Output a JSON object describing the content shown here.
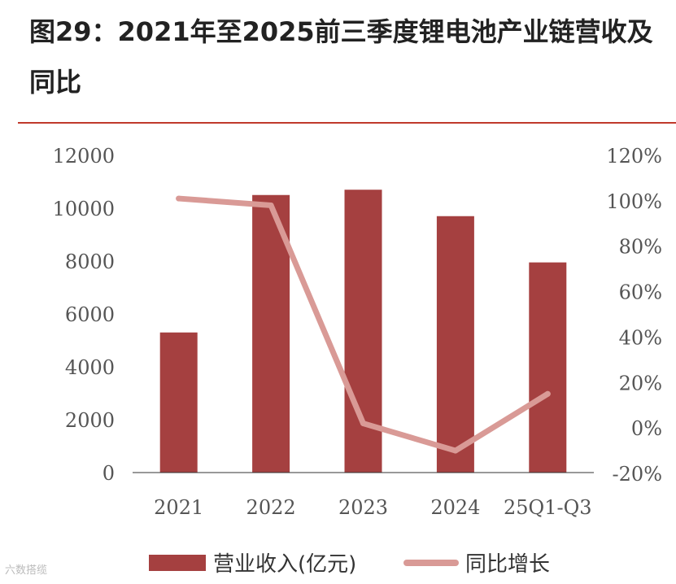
{
  "title": "图29：2021年至2025前三季度锂电池产业链营收及同比",
  "watermark": "六数搭缆",
  "colors": {
    "bar": "#a54040",
    "line": "#d99a96",
    "axis": "#333333",
    "rule": "#c0392b"
  },
  "chart_data": {
    "type": "bar",
    "categories": [
      "2021",
      "2022",
      "2023",
      "2024",
      "25Q1-Q3"
    ],
    "series": [
      {
        "name": "营业收入(亿元)",
        "type": "bar",
        "axis": "left",
        "values": [
          5300,
          10500,
          10700,
          9700,
          7950
        ]
      },
      {
        "name": "同比增长",
        "type": "line",
        "axis": "right",
        "values": [
          101,
          98,
          2,
          -10,
          15
        ]
      }
    ],
    "ylim": [
      0,
      12000
    ],
    "yticks": [
      "12000",
      "10000",
      "8000",
      "6000",
      "4000",
      "2000",
      "0"
    ],
    "y2lim": [
      -20,
      120
    ],
    "y2ticks": [
      "120%",
      "100%",
      "80%",
      "60%",
      "40%",
      "20%",
      "0%",
      "-20%"
    ],
    "grid": false,
    "legend_position": "bottom"
  }
}
